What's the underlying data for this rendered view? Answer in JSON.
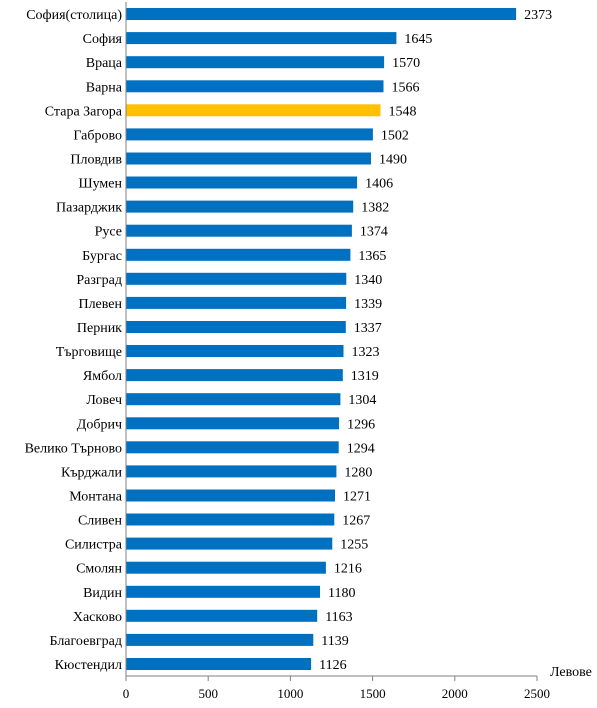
{
  "chart_data": {
    "type": "bar",
    "orientation": "horizontal",
    "categories": [
      "София(столица)",
      "София",
      "Враца",
      "Варна",
      "Стара Загора",
      "Габрово",
      "Пловдив",
      "Шумен",
      "Пазарджик",
      "Русе",
      "Бургас",
      "Разград",
      "Плевен",
      "Перник",
      "Търговище",
      "Ямбол",
      "Ловеч",
      "Добрич",
      "Велико Търново",
      "Кърджали",
      "Монтана",
      "Сливен",
      "Силистра",
      "Смолян",
      "Видин",
      "Хасково",
      "Благоевград",
      "Кюстендил"
    ],
    "values": [
      2373,
      1645,
      1570,
      1566,
      1548,
      1502,
      1490,
      1406,
      1382,
      1374,
      1365,
      1340,
      1339,
      1337,
      1323,
      1319,
      1304,
      1296,
      1294,
      1280,
      1271,
      1267,
      1255,
      1216,
      1180,
      1163,
      1139,
      1126
    ],
    "highlight_category": "Стара Загора",
    "colors": {
      "bar": "#0070C0",
      "highlight": "#FFC000",
      "axis": "#808080"
    },
    "xlim": [
      0,
      2500
    ],
    "xticks": [
      0,
      500,
      1000,
      1500,
      2000,
      2500
    ],
    "xlabel": "Левове",
    "grid": false,
    "data_labels": true
  }
}
